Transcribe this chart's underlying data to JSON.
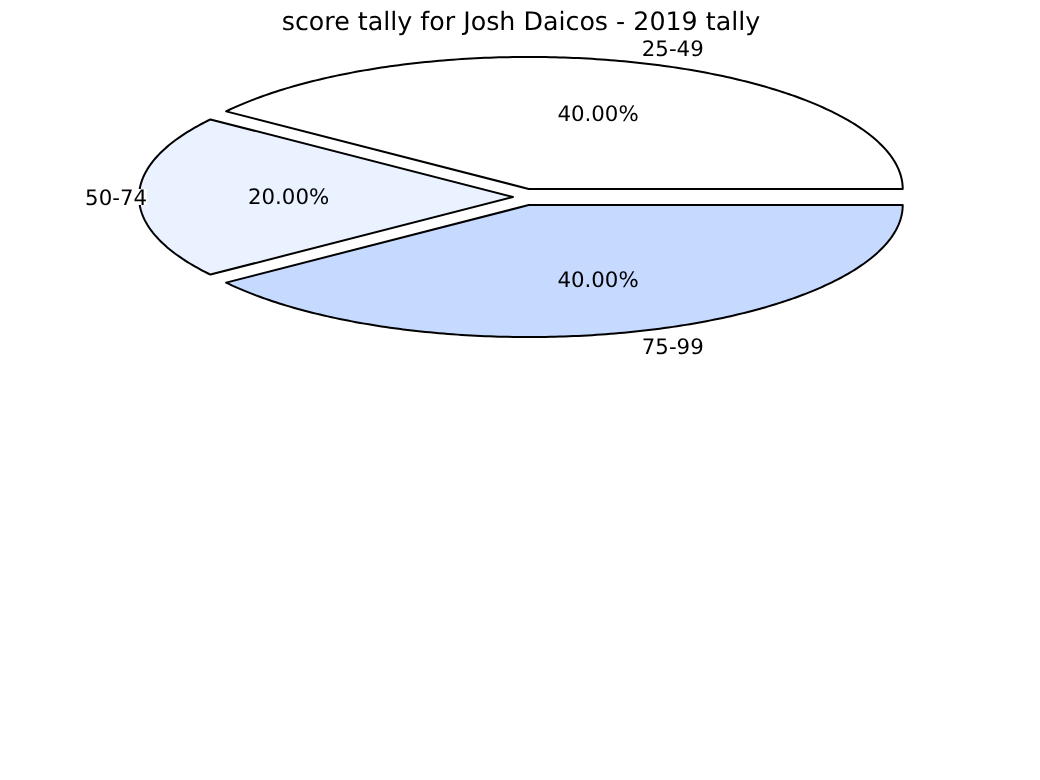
{
  "chart_data": {
    "type": "pie",
    "title": "score tally for Josh Daicos - 2019 tally",
    "categories": [
      "25-49",
      "50-74",
      "75-99"
    ],
    "values": [
      40,
      20,
      40
    ],
    "value_labels": [
      "40.00%",
      "20.00%",
      "40.00%"
    ],
    "colors": [
      "#ffffff",
      "#eaf1ff",
      "#c6d9ff"
    ]
  }
}
